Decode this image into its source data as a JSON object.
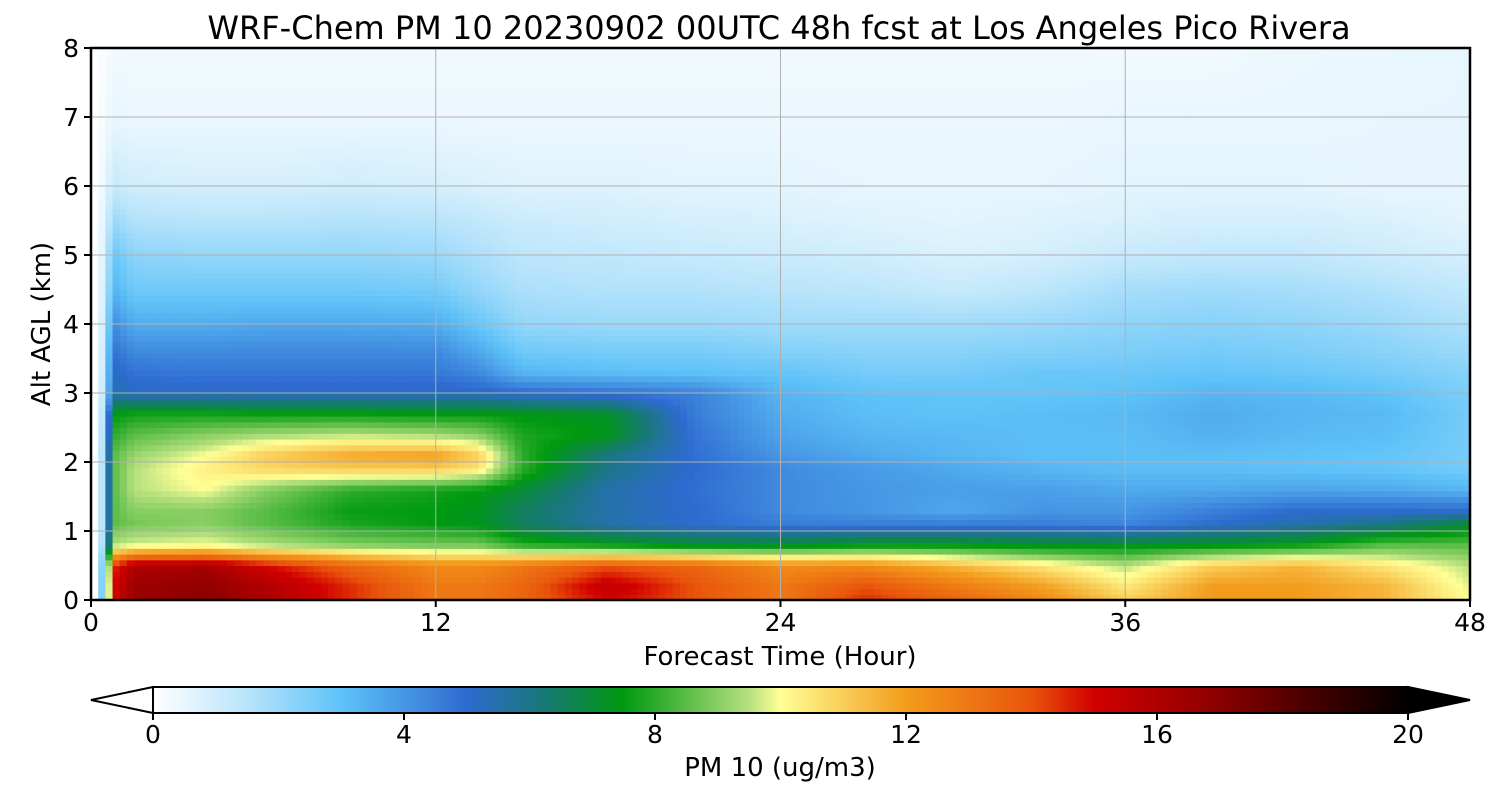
{
  "chart_data": {
    "type": "heatmap",
    "title": "WRF-Chem PM 10  20230902 00UTC 48h fcst at Los Angeles Pico Rivera",
    "xlabel": "Forecast Time (Hour)",
    "ylabel": "Alt AGL (km)",
    "xlim": [
      0,
      48
    ],
    "ylim": [
      0,
      8
    ],
    "xticks": [
      0,
      12,
      24,
      36,
      48
    ],
    "yticks": [
      0,
      1,
      2,
      3,
      4,
      5,
      6,
      7,
      8
    ],
    "grid": true,
    "colorbar": {
      "label": "PM 10  (ug/m3)",
      "range": [
        0,
        20
      ],
      "ticks": [
        0,
        4,
        8,
        12,
        16,
        20
      ],
      "extend": "both",
      "stops": [
        {
          "v": 0,
          "c": "#ffffff"
        },
        {
          "v": 1.5,
          "c": "#b8e4fb"
        },
        {
          "v": 3,
          "c": "#5ec2f8"
        },
        {
          "v": 5,
          "c": "#2e6bd0"
        },
        {
          "v": 6.3,
          "c": "#167a70"
        },
        {
          "v": 7.5,
          "c": "#009a10"
        },
        {
          "v": 9.5,
          "c": "#b6e07e"
        },
        {
          "v": 10,
          "c": "#ffff95"
        },
        {
          "v": 12,
          "c": "#f39c1c"
        },
        {
          "v": 14,
          "c": "#e9540b"
        },
        {
          "v": 15,
          "c": "#d20000"
        },
        {
          "v": 17,
          "c": "#8a0000"
        },
        {
          "v": 20,
          "c": "#000000"
        }
      ]
    },
    "hours": [
      0,
      0.3,
      0.8,
      1.5,
      4,
      6,
      9,
      12,
      13.5,
      15,
      18,
      21,
      24,
      27,
      30,
      33,
      36,
      39,
      42,
      45,
      48
    ],
    "altitudes_km": [
      0,
      0.2,
      0.5,
      0.8,
      1.1,
      1.3,
      1.6,
      1.9,
      2.1,
      2.4,
      2.7,
      3.0,
      3.3,
      3.6,
      4.0,
      4.5,
      5.0,
      5.5,
      6.0,
      7.0,
      8.0
    ],
    "values": [
      [
        0.0,
        0.1,
        15.0,
        16.5,
        17.0,
        16.0,
        14.5,
        13.0,
        13.0,
        13.5,
        15.0,
        14.0,
        13.0,
        14.5,
        13.5,
        12.5,
        11.0,
        12.0,
        12.0,
        11.5,
        10.0
      ],
      [
        0.0,
        0.1,
        15.0,
        16.5,
        16.8,
        16.0,
        14.5,
        13.0,
        13.0,
        13.5,
        15.5,
        14.0,
        13.0,
        14.0,
        13.0,
        12.0,
        10.5,
        12.0,
        12.0,
        11.5,
        9.8
      ],
      [
        0.0,
        0.1,
        14.5,
        16.0,
        16.2,
        15.0,
        13.5,
        12.5,
        12.5,
        13.0,
        14.0,
        13.5,
        12.5,
        12.5,
        11.5,
        10.5,
        9.5,
        11.0,
        11.5,
        10.5,
        9.5
      ],
      [
        0.0,
        0.2,
        9.5,
        9.8,
        10.0,
        9.5,
        9.0,
        8.8,
        8.8,
        8.0,
        7.6,
        7.2,
        7.2,
        7.5,
        7.5,
        7.3,
        7.3,
        7.4,
        7.6,
        8.5,
        8.5
      ],
      [
        0.0,
        0.2,
        8.5,
        8.8,
        9.0,
        8.5,
        7.8,
        7.5,
        7.3,
        6.5,
        5.5,
        5.0,
        4.6,
        4.6,
        4.6,
        4.6,
        4.4,
        5.0,
        5.5,
        6.0,
        7.0
      ],
      [
        0.0,
        0.2,
        8.5,
        9.0,
        9.0,
        8.5,
        7.6,
        7.5,
        7.3,
        6.5,
        5.5,
        5.0,
        4.3,
        4.0,
        3.6,
        4.0,
        4.0,
        4.5,
        5.0,
        5.0,
        5.0
      ],
      [
        0.0,
        0.2,
        8.5,
        9.5,
        10.0,
        9.0,
        8.0,
        7.7,
        7.5,
        7.0,
        5.5,
        4.9,
        4.3,
        4.0,
        3.8,
        3.8,
        3.6,
        3.6,
        3.7,
        3.6,
        3.3
      ],
      [
        0.0,
        0.2,
        8.5,
        9.5,
        10.3,
        10.8,
        11.0,
        11.0,
        10.5,
        8.0,
        6.0,
        5.0,
        4.3,
        3.9,
        3.6,
        3.3,
        3.1,
        3.1,
        3.0,
        2.9,
        2.6
      ],
      [
        0.0,
        0.2,
        8.5,
        9.2,
        10.0,
        11.0,
        11.8,
        12.0,
        11.0,
        8.0,
        6.0,
        4.9,
        4.0,
        3.6,
        3.3,
        3.1,
        3.1,
        3.1,
        3.0,
        2.9,
        2.6
      ],
      [
        0.0,
        0.2,
        8.0,
        8.5,
        9.0,
        9.3,
        9.5,
        9.3,
        9.0,
        7.8,
        7.4,
        4.8,
        3.7,
        3.3,
        3.2,
        3.1,
        3.1,
        3.4,
        3.2,
        3.1,
        2.6
      ],
      [
        0.0,
        0.2,
        7.5,
        7.7,
        7.7,
        7.6,
        7.6,
        7.5,
        7.5,
        7.4,
        7.2,
        4.6,
        3.5,
        3.1,
        3.0,
        3.1,
        3.2,
        3.5,
        3.3,
        3.2,
        2.6
      ],
      [
        0.0,
        0.2,
        5.5,
        5.2,
        5.2,
        5.2,
        5.2,
        5.2,
        5.2,
        5.0,
        4.8,
        4.5,
        3.3,
        3.0,
        2.9,
        2.9,
        3.0,
        3.3,
        3.2,
        3.0,
        2.5
      ],
      [
        0.0,
        0.2,
        5.2,
        4.8,
        4.7,
        4.7,
        4.7,
        4.7,
        4.3,
        3.3,
        3.1,
        3.0,
        2.9,
        2.6,
        2.6,
        2.8,
        2.8,
        2.9,
        2.8,
        2.6,
        2.3
      ],
      [
        0.0,
        0.2,
        4.8,
        4.3,
        4.3,
        4.3,
        4.3,
        4.3,
        3.6,
        2.7,
        2.6,
        2.6,
        2.4,
        2.3,
        2.3,
        2.4,
        2.5,
        2.6,
        2.5,
        2.3,
        2.0
      ],
      [
        0.0,
        0.2,
        4.2,
        3.5,
        3.5,
        3.6,
        3.6,
        3.5,
        2.8,
        2.1,
        2.0,
        2.0,
        1.9,
        1.9,
        1.9,
        2.0,
        2.2,
        2.3,
        2.2,
        2.0,
        1.7
      ],
      [
        0.0,
        0.2,
        3.3,
        2.7,
        2.7,
        2.7,
        2.7,
        2.6,
        2.1,
        1.7,
        1.6,
        1.6,
        1.5,
        1.4,
        1.2,
        1.4,
        1.8,
        1.9,
        1.8,
        1.6,
        1.3
      ],
      [
        0.0,
        0.2,
        2.8,
        2.2,
        2.1,
        2.1,
        2.1,
        2.0,
        1.7,
        1.4,
        1.3,
        1.2,
        1.1,
        1.0,
        0.8,
        0.9,
        1.2,
        1.3,
        1.3,
        1.1,
        0.9
      ],
      [
        0.0,
        0.2,
        2.0,
        1.6,
        1.5,
        1.5,
        1.6,
        1.5,
        1.3,
        1.1,
        1.0,
        0.9,
        0.8,
        0.7,
        0.6,
        0.7,
        0.8,
        0.9,
        0.9,
        0.8,
        0.6
      ],
      [
        0.0,
        0.15,
        1.2,
        1.0,
        0.9,
        0.9,
        1.0,
        0.9,
        0.8,
        0.7,
        0.7,
        0.6,
        0.6,
        0.5,
        0.5,
        0.5,
        0.6,
        0.6,
        0.6,
        0.5,
        0.5
      ],
      [
        0.0,
        0.1,
        0.5,
        0.4,
        0.4,
        0.4,
        0.4,
        0.4,
        0.4,
        0.4,
        0.4,
        0.4,
        0.4,
        0.4,
        0.4,
        0.4,
        0.45,
        0.45,
        0.45,
        0.5,
        0.5
      ],
      [
        0.0,
        0.05,
        0.3,
        0.3,
        0.3,
        0.3,
        0.3,
        0.3,
        0.3,
        0.3,
        0.3,
        0.3,
        0.3,
        0.3,
        0.3,
        0.3,
        0.3,
        0.3,
        0.4,
        0.45,
        0.5
      ]
    ]
  }
}
